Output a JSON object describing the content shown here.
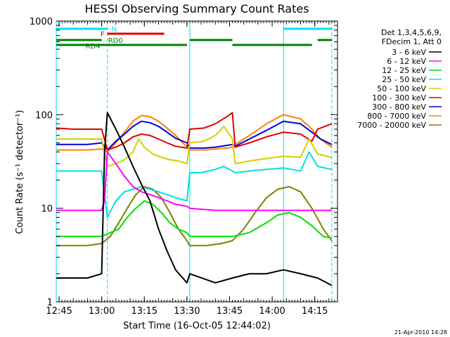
{
  "chart_data": {
    "type": "line",
    "title": "HESSI Observing Summary Count Rates",
    "xlabel": "Start Time (16-Oct-05 12:44:02)",
    "ylabel": "Count Rate (s⁻¹ detector⁻¹)",
    "x_scale": "time",
    "y_scale": "log",
    "xlim": [
      "12:44",
      "14:23"
    ],
    "ylim": [
      1,
      1000
    ],
    "x_ticks": [
      "12:45",
      "13:00",
      "13:15",
      "13:30",
      "13:45",
      "14:00",
      "14:15"
    ],
    "y_ticks": [
      "1",
      "10",
      "100",
      "1000"
    ],
    "grid": false,
    "legend_position": "outside-right",
    "legend_header": [
      "Det 1,3,4,5,6,9,",
      "FDecim 1, Att 0"
    ],
    "date_stamp": "21-Apr-2010 14:28",
    "vertical_markers": {
      "cyan_solid": [
        "12:44",
        "13:31",
        "14:04"
      ],
      "cyan_dashed": [
        "13:02",
        "14:21"
      ]
    },
    "state_bars": [
      {
        "label": "N",
        "color": "#00e0ff",
        "segments": [
          [
            "12:44",
            "13:02"
          ],
          [
            "14:04",
            "14:21"
          ]
        ]
      },
      {
        "label": "F",
        "color": "#e00000",
        "segments": [
          [
            "13:02",
            "13:22"
          ]
        ]
      },
      {
        "label": "RD0",
        "color": "#008000",
        "segments": [
          [
            "12:44",
            "13:00"
          ],
          [
            "13:31",
            "13:46"
          ],
          [
            "14:16",
            "14:21"
          ]
        ]
      },
      {
        "label": "RD4",
        "color": "#008000",
        "segments": [
          [
            "12:44",
            "13:30"
          ],
          [
            "13:46",
            "14:14"
          ]
        ]
      }
    ],
    "series": [
      {
        "name": "3 - 6 keV",
        "color": "#000000",
        "x": [
          "12:44",
          "12:50",
          "12:55",
          "13:00",
          "13:01",
          "13:02",
          "13:05",
          "13:08",
          "13:11",
          "13:14",
          "13:17",
          "13:20",
          "13:23",
          "13:26",
          "13:30",
          "13:31",
          "13:40",
          "13:46",
          "13:52",
          "13:58",
          "14:04",
          "14:10",
          "14:16",
          "14:21"
        ],
        "y": [
          1.8,
          1.8,
          1.8,
          2.0,
          40,
          105,
          70,
          45,
          28,
          18,
          12,
          6,
          3.5,
          2.2,
          1.6,
          2.0,
          1.6,
          1.8,
          2.0,
          2.0,
          2.2,
          2.0,
          1.8,
          1.5
        ]
      },
      {
        "name": "6 - 12 keV",
        "color": "#ff00ff",
        "x": [
          "12:44",
          "12:50",
          "12:55",
          "13:00",
          "13:01",
          "13:02",
          "13:05",
          "13:08",
          "13:11",
          "13:14",
          "13:17",
          "13:20",
          "13:23",
          "13:26",
          "13:30",
          "13:31",
          "13:40",
          "13:46",
          "13:52",
          "13:58",
          "14:04",
          "14:10",
          "14:16",
          "14:21"
        ],
        "y": [
          9.5,
          9.5,
          9.5,
          9.5,
          12,
          40,
          30,
          22,
          17,
          15,
          14,
          13,
          12,
          11,
          10.5,
          10,
          9.5,
          9.5,
          9.5,
          9.5,
          9.5,
          9.5,
          9.5,
          9.5
        ]
      },
      {
        "name": "12 - 25 keV",
        "color": "#00e000",
        "x": [
          "12:44",
          "12:50",
          "12:55",
          "13:00",
          "13:03",
          "13:06",
          "13:09",
          "13:12",
          "13:15",
          "13:18",
          "13:21",
          "13:24",
          "13:27",
          "13:30",
          "13:31",
          "13:40",
          "13:46",
          "13:52",
          "13:58",
          "14:02",
          "14:06",
          "14:10",
          "14:14",
          "14:18",
          "14:21"
        ],
        "y": [
          5,
          5,
          5,
          5,
          5.5,
          6,
          8,
          10,
          12,
          11,
          9,
          7,
          6,
          5.5,
          5,
          5,
          5,
          5.5,
          7,
          8.5,
          9,
          8,
          6.5,
          5,
          4.8
        ]
      },
      {
        "name": "25 - 50 keV",
        "color": "#00e0e0",
        "x": [
          "12:44",
          "12:50",
          "12:55",
          "13:00",
          "13:02",
          "13:05",
          "13:08",
          "13:11",
          "13:14",
          "13:17",
          "13:20",
          "13:23",
          "13:26",
          "13:30",
          "13:31",
          "13:35",
          "13:40",
          "13:43",
          "13:46",
          "13:47",
          "13:52",
          "13:58",
          "14:04",
          "14:10",
          "14:13",
          "14:16",
          "14:21"
        ],
        "y": [
          25,
          25,
          25,
          25,
          8,
          12,
          15,
          16,
          17,
          16,
          15,
          14,
          13,
          12,
          24,
          24,
          26,
          28,
          25,
          24,
          25,
          26,
          27,
          25,
          40,
          28,
          26
        ]
      },
      {
        "name": "50 - 100 keV",
        "color": "#d0d000",
        "x": [
          "12:44",
          "12:50",
          "12:55",
          "13:00",
          "13:02",
          "13:05",
          "13:08",
          "13:11",
          "13:13",
          "13:15",
          "13:18",
          "13:21",
          "13:24",
          "13:27",
          "13:30",
          "13:31",
          "13:36",
          "13:40",
          "13:43",
          "13:46",
          "13:47",
          "13:52",
          "13:58",
          "14:04",
          "14:10",
          "14:13",
          "14:16",
          "14:21"
        ],
        "y": [
          55,
          55,
          55,
          55,
          28,
          30,
          33,
          40,
          55,
          45,
          38,
          35,
          33,
          32,
          30,
          50,
          52,
          60,
          75,
          55,
          30,
          32,
          34,
          36,
          35,
          55,
          38,
          35
        ]
      },
      {
        "name": "100 - 300 keV",
        "color": "#e00000",
        "x": [
          "12:44",
          "12:50",
          "12:55",
          "13:00",
          "13:02",
          "13:05",
          "13:08",
          "13:11",
          "13:14",
          "13:17",
          "13:20",
          "13:23",
          "13:26",
          "13:30",
          "13:31",
          "13:36",
          "13:40",
          "13:44",
          "13:46",
          "13:47",
          "13:52",
          "13:58",
          "14:04",
          "14:10",
          "14:14",
          "14:16",
          "14:21"
        ],
        "y": [
          72,
          70,
          70,
          70,
          42,
          45,
          50,
          58,
          62,
          60,
          55,
          50,
          46,
          44,
          70,
          72,
          80,
          95,
          105,
          45,
          50,
          58,
          65,
          62,
          52,
          70,
          80
        ]
      },
      {
        "name": "300 - 800 keV",
        "color": "#0000e0",
        "x": [
          "12:44",
          "12:50",
          "12:55",
          "13:00",
          "13:02",
          "13:05",
          "13:08",
          "13:11",
          "13:14",
          "13:17",
          "13:20",
          "13:23",
          "13:26",
          "13:30",
          "13:31",
          "13:36",
          "13:40",
          "13:44",
          "13:46",
          "13:47",
          "13:52",
          "13:58",
          "14:04",
          "14:10",
          "14:14",
          "14:17",
          "14:21"
        ],
        "y": [
          48,
          48,
          48,
          50,
          42,
          52,
          62,
          75,
          85,
          82,
          75,
          65,
          56,
          50,
          44,
          44,
          45,
          47,
          48,
          46,
          55,
          68,
          85,
          80,
          65,
          55,
          48
        ]
      },
      {
        "name": "800 - 7000 keV",
        "color": "#ff8000",
        "x": [
          "12:44",
          "12:50",
          "12:55",
          "13:00",
          "13:02",
          "13:05",
          "13:08",
          "13:11",
          "13:14",
          "13:17",
          "13:20",
          "13:23",
          "13:26",
          "13:30",
          "13:31",
          "13:36",
          "13:40",
          "13:44",
          "13:46",
          "13:47",
          "13:52",
          "13:58",
          "14:04",
          "14:10",
          "14:14",
          "14:17",
          "14:21"
        ],
        "y": [
          42,
          42,
          42,
          43,
          40,
          50,
          65,
          85,
          98,
          95,
          85,
          72,
          60,
          45,
          42,
          42,
          43,
          44,
          45,
          48,
          60,
          80,
          100,
          90,
          70,
          55,
          45
        ]
      },
      {
        "name": "7000 - 20000 keV",
        "color": "#808000",
        "x": [
          "12:44",
          "12:50",
          "12:55",
          "13:00",
          "13:03",
          "13:06",
          "13:09",
          "13:12",
          "13:15",
          "13:18",
          "13:21",
          "13:24",
          "13:27",
          "13:30",
          "13:31",
          "13:37",
          "13:42",
          "13:46",
          "13:50",
          "13:54",
          "13:58",
          "14:02",
          "14:06",
          "14:10",
          "14:14",
          "14:18",
          "14:21"
        ],
        "y": [
          4,
          4,
          4,
          4.2,
          5,
          7,
          10,
          14,
          17,
          16,
          13,
          9,
          6,
          4.5,
          4,
          4,
          4.2,
          4.5,
          6,
          9,
          13,
          16,
          17,
          15,
          10,
          6,
          4.5
        ]
      }
    ]
  }
}
